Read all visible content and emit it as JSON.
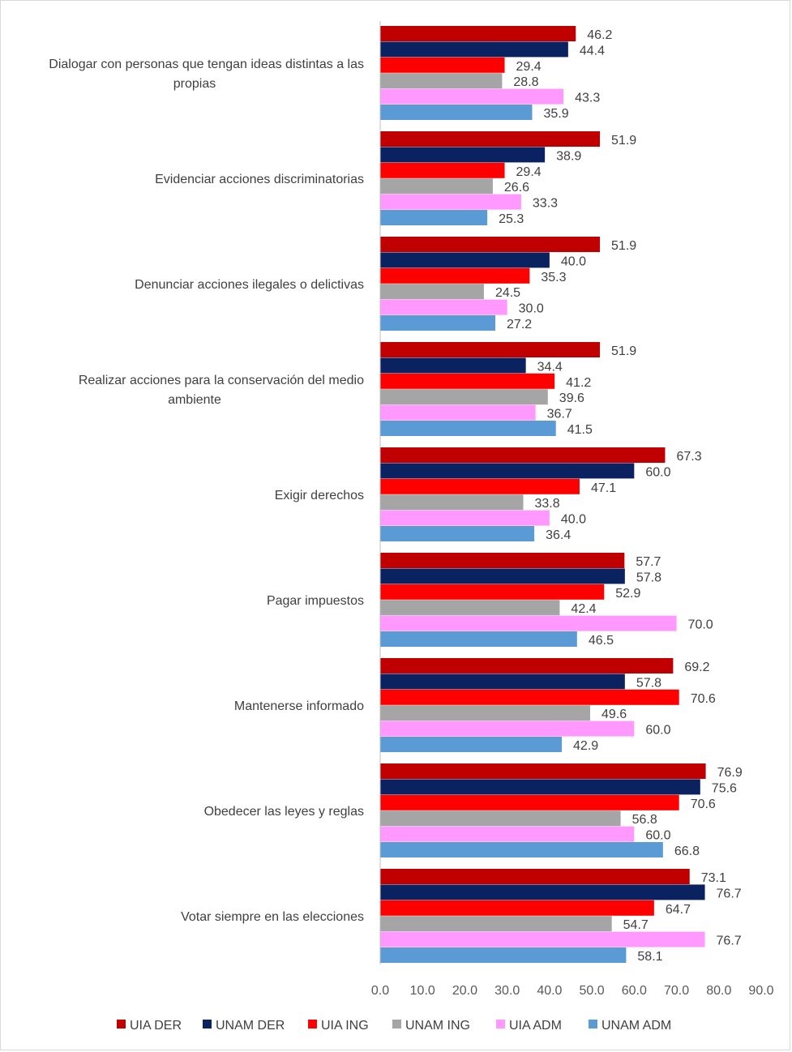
{
  "chart_data": {
    "type": "bar",
    "orientation": "horizontal",
    "categories": [
      [
        "Dialogar con personas que tengan ideas distintas a las",
        "propias"
      ],
      [
        "Evidenciar acciones discriminatorias"
      ],
      [
        "Denunciar acciones ilegales o delictivas"
      ],
      [
        "Realizar acciones para la conservación del medio",
        "ambiente"
      ],
      [
        "Exigir derechos"
      ],
      [
        "Pagar impuestos"
      ],
      [
        "Mantenerse informado"
      ],
      [
        "Obedecer las leyes y reglas"
      ],
      [
        "Votar siempre en las elecciones"
      ]
    ],
    "series": [
      {
        "name": "UIA DER",
        "color": "#c00000",
        "values": [
          46.2,
          51.9,
          51.9,
          51.9,
          67.3,
          57.7,
          69.2,
          76.9,
          73.1
        ]
      },
      {
        "name": "UNAM DER",
        "color": "#0b2260",
        "values": [
          44.4,
          38.9,
          40.0,
          34.4,
          60.0,
          57.8,
          57.8,
          75.6,
          76.7
        ]
      },
      {
        "name": "UIA ING",
        "color": "#ff0000",
        "values": [
          29.4,
          29.4,
          35.3,
          41.2,
          47.1,
          52.9,
          70.6,
          70.6,
          64.7
        ]
      },
      {
        "name": "UNAM ING",
        "color": "#a5a5a5",
        "values": [
          28.8,
          26.6,
          24.5,
          39.6,
          33.8,
          42.4,
          49.6,
          56.8,
          54.7
        ]
      },
      {
        "name": "UIA ADM",
        "color": "#ff99ff",
        "values": [
          43.3,
          33.3,
          30.0,
          36.7,
          40.0,
          70.0,
          60.0,
          60.0,
          76.7
        ]
      },
      {
        "name": "UNAM ADM",
        "color": "#5b9bd5",
        "values": [
          35.9,
          25.3,
          27.2,
          41.5,
          36.4,
          46.5,
          42.9,
          66.8,
          58.1
        ]
      }
    ],
    "xlim": [
      0,
      90
    ],
    "xticks": [
      "0.0",
      "10.0",
      "20.0",
      "30.0",
      "40.0",
      "50.0",
      "60.0",
      "70.0",
      "80.0",
      "90.0"
    ],
    "value_format": "one-decimal",
    "legend": "bottom",
    "grid": false,
    "title": "",
    "xlabel": "",
    "ylabel": ""
  }
}
